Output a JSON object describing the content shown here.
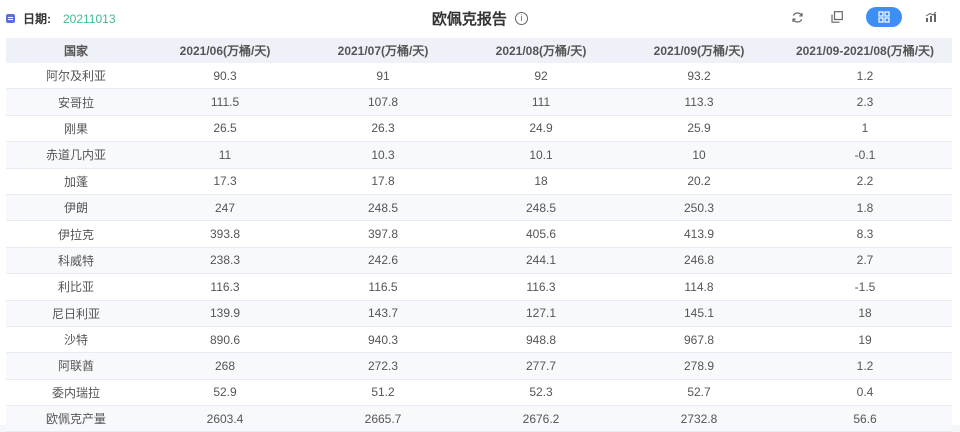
{
  "header": {
    "date_label": "日期:",
    "date_value": "20211013",
    "title": "欧佩克报告",
    "info_glyph": "i",
    "tools": [
      {
        "name": "refresh-icon"
      },
      {
        "name": "copy-icon"
      },
      {
        "name": "grid-view-icon",
        "active": true
      },
      {
        "name": "chart-view-icon"
      }
    ],
    "accent_color": "#3d8ff5",
    "date_color": "#3fba8c"
  },
  "table": {
    "columns": [
      "国家",
      "2021/06(万桶/天)",
      "2021/07(万桶/天)",
      "2021/08(万桶/天)",
      "2021/09(万桶/天)",
      "2021/09-2021/08(万桶/天)"
    ],
    "rows": [
      [
        "阿尔及利亚",
        "90.3",
        "91",
        "92",
        "93.2",
        "1.2"
      ],
      [
        "安哥拉",
        "111.5",
        "107.8",
        "111",
        "113.3",
        "2.3"
      ],
      [
        "刚果",
        "26.5",
        "26.3",
        "24.9",
        "25.9",
        "1"
      ],
      [
        "赤道几内亚",
        "11",
        "10.3",
        "10.1",
        "10",
        "-0.1"
      ],
      [
        "加蓬",
        "17.3",
        "17.8",
        "18",
        "20.2",
        "2.2"
      ],
      [
        "伊朗",
        "247",
        "248.5",
        "248.5",
        "250.3",
        "1.8"
      ],
      [
        "伊拉克",
        "393.8",
        "397.8",
        "405.6",
        "413.9",
        "8.3"
      ],
      [
        "科威特",
        "238.3",
        "242.6",
        "244.1",
        "246.8",
        "2.7"
      ],
      [
        "利比亚",
        "116.3",
        "116.5",
        "116.3",
        "114.8",
        "-1.5"
      ],
      [
        "尼日利亚",
        "139.9",
        "143.7",
        "127.1",
        "145.1",
        "18"
      ],
      [
        "沙特",
        "890.6",
        "940.3",
        "948.8",
        "967.8",
        "19"
      ],
      [
        "阿联酋",
        "268",
        "272.3",
        "277.7",
        "278.9",
        "1.2"
      ],
      [
        "委内瑞拉",
        "52.9",
        "51.2",
        "52.3",
        "52.7",
        "0.4"
      ],
      [
        "欧佩克产量",
        "2603.4",
        "2665.7",
        "2676.2",
        "2732.8",
        "56.6"
      ]
    ]
  }
}
